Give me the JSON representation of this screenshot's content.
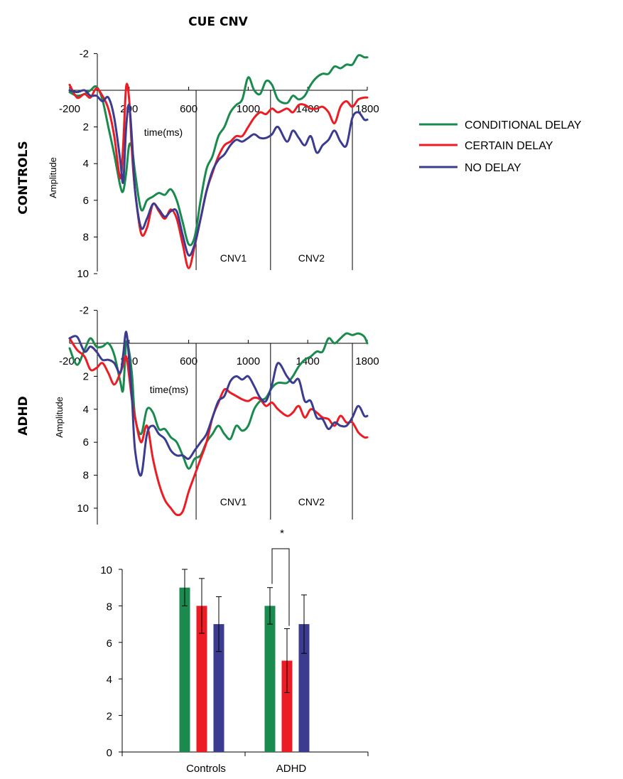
{
  "figure_title": "CUE CNV",
  "colors": {
    "conditional": "#1a8a4f",
    "certain": "#ed1c24",
    "none": "#3b3b8f"
  },
  "legend": [
    {
      "label": "CONDITIONAL DELAY",
      "color": "#1a8a4f"
    },
    {
      "label": "CERTAIN DELAY",
      "color": "#ed1c24"
    },
    {
      "label": "NO DELAY",
      "color": "#3b3b8f"
    }
  ],
  "chart_data": [
    {
      "type": "line",
      "group_label": "CONTROLS",
      "xlabel": "time(ms)",
      "ylabel": "Amplitude",
      "xlim": [
        -200,
        1800
      ],
      "ylim": [
        -2,
        10
      ],
      "y_inverted": true,
      "xticks": [
        "-200",
        "200",
        "600",
        "1000",
        "1400",
        "1800"
      ],
      "yticks": [
        "-2",
        "",
        "2",
        "4",
        "6",
        "8",
        "10"
      ],
      "windows": [
        {
          "label": "CNV1",
          "start": 650,
          "end": 1150
        },
        {
          "label": "CNV2",
          "start": 1150,
          "end": 1700
        }
      ],
      "series": [
        {
          "name": "CONDITIONAL DELAY",
          "color": "#1a8a4f",
          "x": [
            -200,
            -150,
            -100,
            -60,
            -20,
            20,
            60,
            100,
            140,
            160,
            180,
            200,
            220,
            240,
            280,
            320,
            360,
            400,
            440,
            480,
            520,
            560,
            600,
            640,
            680,
            720,
            760,
            800,
            840,
            880,
            920,
            960,
            1000,
            1040,
            1080,
            1120,
            1160,
            1200,
            1260,
            1300,
            1340,
            1380,
            1420,
            1460,
            1500,
            1540,
            1580,
            1620,
            1660,
            1700,
            1740,
            1780,
            1800
          ],
          "values": [
            0.1,
            0.3,
            0.2,
            0.0,
            -0.2,
            0.5,
            2.0,
            3.5,
            5.2,
            5.5,
            4.5,
            3.0,
            3.2,
            4.5,
            6.5,
            6.0,
            5.8,
            5.6,
            5.7,
            5.4,
            6.0,
            7.2,
            8.4,
            8.0,
            6.0,
            4.3,
            3.6,
            2.5,
            2.0,
            1.2,
            0.8,
            0.5,
            -0.7,
            0.0,
            0.2,
            -0.5,
            -0.3,
            0.5,
            0.7,
            0.3,
            0.5,
            0.3,
            -0.3,
            -0.7,
            -0.9,
            -0.9,
            -1.3,
            -1.2,
            -1.4,
            -1.4,
            -1.9,
            -1.8,
            -1.8
          ]
        },
        {
          "name": "CERTAIN DELAY",
          "color": "#ed1c24",
          "x": [
            -200,
            -150,
            -100,
            -60,
            -20,
            20,
            60,
            100,
            140,
            160,
            180,
            200,
            220,
            240,
            280,
            320,
            360,
            400,
            440,
            480,
            520,
            560,
            600,
            640,
            680,
            720,
            760,
            800,
            840,
            880,
            920,
            960,
            1000,
            1040,
            1080,
            1120,
            1160,
            1200,
            1260,
            1300,
            1340,
            1380,
            1420,
            1460,
            1500,
            1540,
            1580,
            1620,
            1660,
            1700,
            1740,
            1780,
            1800
          ],
          "values": [
            -0.3,
            0.4,
            0.2,
            0.4,
            -0.1,
            0.3,
            1.0,
            2.5,
            4.8,
            3.0,
            -0.2,
            0.5,
            3.5,
            5.5,
            7.8,
            7.5,
            6.2,
            6.6,
            7.0,
            6.5,
            7.0,
            8.4,
            9.7,
            8.5,
            7.0,
            5.5,
            4.5,
            3.6,
            3.0,
            2.8,
            2.5,
            2.5,
            2.0,
            1.5,
            1.2,
            1.3,
            1.0,
            1.2,
            1.0,
            1.2,
            0.8,
            0.8,
            1.0,
            1.0,
            0.9,
            1.2,
            1.8,
            0.9,
            0.6,
            0.9,
            0.5,
            0.4,
            0.4
          ]
        },
        {
          "name": "NO DELAY",
          "color": "#3b3b8f",
          "x": [
            -200,
            -150,
            -100,
            -60,
            -20,
            20,
            60,
            100,
            140,
            160,
            180,
            200,
            220,
            240,
            280,
            320,
            360,
            400,
            440,
            480,
            520,
            560,
            600,
            640,
            680,
            720,
            760,
            800,
            840,
            880,
            920,
            960,
            1000,
            1040,
            1080,
            1120,
            1160,
            1200,
            1260,
            1300,
            1340,
            1380,
            1420,
            1460,
            1500,
            1540,
            1580,
            1620,
            1660,
            1700,
            1740,
            1780,
            1800
          ],
          "values": [
            0.0,
            0.1,
            0.0,
            0.3,
            0.3,
            0.6,
            0.4,
            1.5,
            3.8,
            5.0,
            2.0,
            0.8,
            2.8,
            5.5,
            7.5,
            7.0,
            6.2,
            6.5,
            6.9,
            6.6,
            6.6,
            7.9,
            9.0,
            8.4,
            7.0,
            5.5,
            4.4,
            3.8,
            3.5,
            3.0,
            2.7,
            2.8,
            2.6,
            2.4,
            2.6,
            2.6,
            2.4,
            2.0,
            2.8,
            2.2,
            2.6,
            3.0,
            2.5,
            3.4,
            3.0,
            2.7,
            2.2,
            2.8,
            3.0,
            1.5,
            1.2,
            1.6,
            1.6
          ]
        }
      ]
    },
    {
      "type": "line",
      "group_label": "ADHD",
      "xlabel": "time(ms)",
      "ylabel": "Amplitude",
      "xlim": [
        -200,
        1800
      ],
      "ylim": [
        -2,
        10
      ],
      "y_inverted": true,
      "xticks": [
        "-200",
        "200",
        "600",
        "1000",
        "1400",
        "1800"
      ],
      "yticks": [
        "-2",
        "",
        "2",
        "4",
        "6",
        "8",
        "10"
      ],
      "windows": [
        {
          "label": "CNV1",
          "start": 650,
          "end": 1150
        },
        {
          "label": "CNV2",
          "start": 1150,
          "end": 1700
        }
      ],
      "series": [
        {
          "name": "CONDITIONAL DELAY",
          "color": "#1a8a4f",
          "x": [
            -200,
            -150,
            -100,
            -60,
            -20,
            20,
            60,
            100,
            140,
            160,
            180,
            200,
            220,
            240,
            280,
            320,
            360,
            400,
            440,
            480,
            520,
            560,
            600,
            640,
            680,
            720,
            760,
            800,
            840,
            880,
            920,
            960,
            1000,
            1040,
            1080,
            1120,
            1160,
            1200,
            1260,
            1300,
            1340,
            1380,
            1420,
            1460,
            1500,
            1540,
            1580,
            1620,
            1660,
            1700,
            1740,
            1780,
            1800
          ],
          "values": [
            0.3,
            1.3,
            0.4,
            -0.3,
            0.2,
            0.2,
            0.0,
            0.7,
            2.3,
            2.8,
            0.0,
            0.5,
            2.0,
            4.5,
            5.5,
            4.0,
            4.2,
            5.2,
            5.2,
            5.7,
            6.0,
            6.8,
            7.6,
            7.0,
            6.8,
            6.0,
            5.5,
            5.0,
            5.5,
            5.8,
            5.0,
            5.3,
            5.0,
            4.0,
            3.5,
            3.3,
            2.7,
            2.4,
            2.4,
            2.0,
            1.4,
            1.0,
            0.8,
            0.5,
            0.5,
            -0.3,
            0.0,
            -0.3,
            -0.6,
            -0.5,
            -0.6,
            -0.4,
            0.0
          ]
        },
        {
          "name": "CERTAIN DELAY",
          "color": "#ed1c24",
          "x": [
            -200,
            -150,
            -100,
            -60,
            -20,
            20,
            60,
            100,
            140,
            160,
            180,
            200,
            220,
            240,
            280,
            320,
            360,
            400,
            440,
            480,
            520,
            560,
            600,
            640,
            680,
            720,
            760,
            800,
            840,
            880,
            920,
            960,
            1000,
            1040,
            1080,
            1120,
            1160,
            1200,
            1260,
            1300,
            1340,
            1380,
            1420,
            1460,
            1500,
            1540,
            1580,
            1620,
            1660,
            1700,
            1740,
            1780,
            1800
          ],
          "values": [
            -0.3,
            0.4,
            0.8,
            1.6,
            1.5,
            1.2,
            1.8,
            2.5,
            1.8,
            1.3,
            0.8,
            2.0,
            3.5,
            4.5,
            6.0,
            5.0,
            7.0,
            8.5,
            9.5,
            10.0,
            10.4,
            10.2,
            9.0,
            8.0,
            7.0,
            6.0,
            4.5,
            3.6,
            2.8,
            3.0,
            3.2,
            3.4,
            3.5,
            3.3,
            3.4,
            3.8,
            3.6,
            4.0,
            4.4,
            4.2,
            3.8,
            4.5,
            4.0,
            4.2,
            4.5,
            4.6,
            5.0,
            4.4,
            4.8,
            4.8,
            5.4,
            5.7,
            5.7
          ]
        },
        {
          "name": "NO DELAY",
          "color": "#3b3b8f",
          "x": [
            -200,
            -150,
            -100,
            -60,
            -20,
            20,
            60,
            100,
            140,
            160,
            180,
            200,
            220,
            240,
            280,
            320,
            360,
            400,
            440,
            480,
            520,
            560,
            600,
            640,
            680,
            720,
            760,
            800,
            840,
            880,
            920,
            960,
            1000,
            1040,
            1080,
            1120,
            1160,
            1200,
            1260,
            1300,
            1340,
            1380,
            1420,
            1460,
            1500,
            1540,
            1580,
            1620,
            1660,
            1700,
            1740,
            1780,
            1800
          ],
          "values": [
            -0.3,
            -0.4,
            0.5,
            0.2,
            0.5,
            1.0,
            1.0,
            1.2,
            1.8,
            0.7,
            -0.7,
            1.0,
            3.5,
            6.5,
            8.0,
            5.5,
            5.0,
            5.5,
            5.8,
            6.5,
            6.8,
            6.8,
            7.0,
            6.5,
            6.0,
            5.5,
            4.5,
            3.5,
            3.2,
            2.3,
            2.0,
            2.2,
            2.0,
            2.6,
            3.3,
            3.5,
            2.5,
            1.2,
            2.0,
            2.4,
            2.2,
            3.5,
            3.5,
            4.5,
            4.6,
            5.2,
            4.8,
            5.0,
            5.0,
            4.5,
            3.8,
            4.4,
            4.4
          ]
        }
      ]
    },
    {
      "type": "bar",
      "categories": [
        "Controls",
        "ADHD"
      ],
      "ylim": [
        0,
        10
      ],
      "yticks": [
        "0",
        "2",
        "4",
        "6",
        "8",
        "10"
      ],
      "series": [
        {
          "name": "CONDITIONAL DELAY",
          "color": "#1a8a4f",
          "values": [
            9,
            8
          ],
          "errors": [
            1.0,
            1.0
          ]
        },
        {
          "name": "CERTAIN DELAY",
          "color": "#ed1c24",
          "values": [
            8,
            5
          ],
          "errors": [
            1.5,
            1.75
          ]
        },
        {
          "name": "NO DELAY",
          "color": "#3b3b8f",
          "values": [
            7,
            7
          ],
          "errors": [
            1.5,
            1.6
          ]
        }
      ],
      "significance": "*"
    }
  ]
}
